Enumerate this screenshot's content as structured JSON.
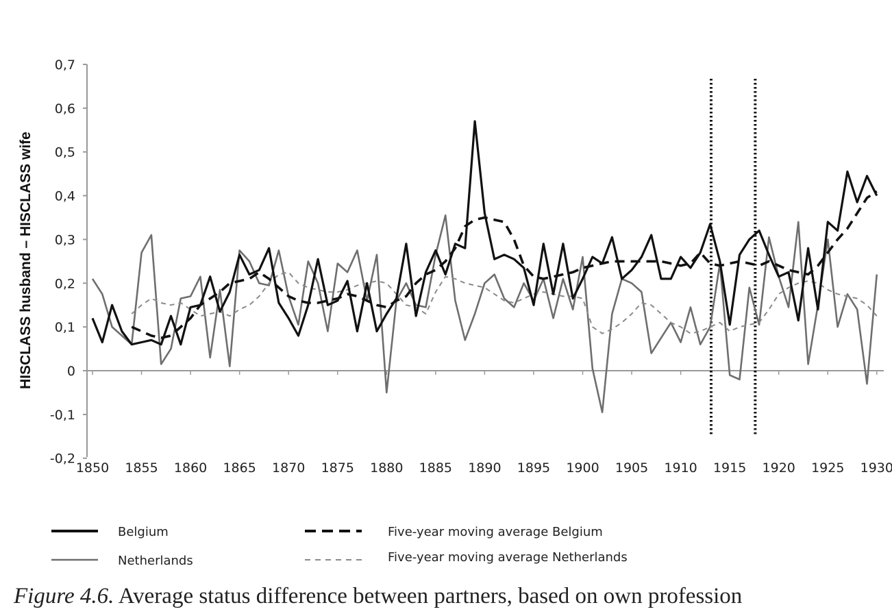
{
  "chart_data": {
    "type": "line",
    "title": "",
    "xlabel": "",
    "ylabel": "HISCLASS husband – HISCLASS wife",
    "xlim": [
      1850,
      1930
    ],
    "ylim": [
      -0.2,
      0.7
    ],
    "y_ticks": [
      "0,7",
      "0,6",
      "0,5",
      "0,4",
      "0,3",
      "0,2",
      "0,1",
      "0",
      "-0,1",
      "-0,2"
    ],
    "y_tick_values": [
      0.7,
      0.6,
      0.5,
      0.4,
      0.3,
      0.2,
      0.1,
      0,
      -0.1,
      -0.2
    ],
    "x_ticks": [
      "1850",
      "1855",
      "1860",
      "1865",
      "1870",
      "1875",
      "1880",
      "1885",
      "1890",
      "1895",
      "1900",
      "1905",
      "1910",
      "1915",
      "1920",
      "1925",
      "1930"
    ],
    "x_tick_values": [
      1850,
      1855,
      1860,
      1865,
      1870,
      1875,
      1880,
      1885,
      1890,
      1895,
      1900,
      1905,
      1910,
      1915,
      1920,
      1925,
      1930
    ],
    "grid": false,
    "legend_placement": "bottom",
    "vertical_markers": [
      1913.1,
      1917.6
    ],
    "x_start": 1850,
    "series": [
      {
        "name": "Belgium",
        "style": "solid-thick",
        "color": "#111111",
        "values": [
          0.12,
          0.065,
          0.15,
          0.09,
          0.06,
          0.065,
          0.07,
          0.06,
          0.125,
          0.06,
          0.145,
          0.15,
          0.215,
          0.135,
          0.18,
          0.265,
          0.22,
          0.23,
          0.28,
          0.155,
          0.12,
          0.08,
          0.15,
          0.255,
          0.15,
          0.16,
          0.205,
          0.09,
          0.2,
          0.09,
          0.13,
          0.165,
          0.29,
          0.125,
          0.225,
          0.275,
          0.22,
          0.29,
          0.28,
          0.57,
          0.36,
          0.255,
          0.265,
          0.255,
          0.235,
          0.15,
          0.29,
          0.175,
          0.29,
          0.165,
          0.21,
          0.26,
          0.245,
          0.305,
          0.21,
          0.23,
          0.26,
          0.31,
          0.21,
          0.21,
          0.26,
          0.235,
          0.27,
          0.335,
          0.25,
          0.105,
          0.265,
          0.3,
          0.32,
          0.265,
          0.215,
          0.225,
          0.115,
          0.28,
          0.14,
          0.34,
          0.32,
          0.455,
          0.385,
          0.445,
          0.4
        ]
      },
      {
        "name": "Netherlands",
        "style": "solid-thin",
        "color": "#6e6e6e",
        "values": [
          0.21,
          0.175,
          0.1,
          0.08,
          0.06,
          0.27,
          0.31,
          0.015,
          0.05,
          0.165,
          0.17,
          0.215,
          0.03,
          0.185,
          0.01,
          0.275,
          0.25,
          0.2,
          0.195,
          0.275,
          0.17,
          0.105,
          0.25,
          0.2,
          0.09,
          0.245,
          0.225,
          0.275,
          0.16,
          0.265,
          -0.05,
          0.16,
          0.2,
          0.15,
          0.145,
          0.265,
          0.355,
          0.16,
          0.07,
          0.13,
          0.2,
          0.22,
          0.165,
          0.145,
          0.2,
          0.16,
          0.21,
          0.12,
          0.21,
          0.14,
          0.26,
          0.005,
          -0.095,
          0.13,
          0.21,
          0.2,
          0.18,
          0.04,
          0.075,
          0.11,
          0.065,
          0.145,
          0.06,
          0.1,
          0.245,
          -0.01,
          -0.02,
          0.19,
          0.105,
          0.305,
          0.215,
          0.145,
          0.34,
          0.015,
          0.15,
          0.3,
          0.1,
          0.175,
          0.14,
          -0.03,
          0.22
        ]
      },
      {
        "name": "Five-year moving average Belgium",
        "style": "dashed-thick",
        "color": "#111111",
        "values": [
          null,
          null,
          null,
          null,
          0.1,
          0.09,
          0.08,
          0.075,
          0.08,
          0.1,
          0.12,
          0.15,
          0.165,
          0.18,
          0.2,
          0.205,
          0.21,
          0.225,
          0.21,
          0.19,
          0.17,
          0.16,
          0.155,
          0.155,
          0.16,
          0.165,
          0.175,
          0.17,
          0.16,
          0.15,
          0.145,
          0.16,
          0.17,
          0.2,
          0.22,
          0.23,
          0.25,
          0.28,
          0.33,
          0.345,
          0.35,
          0.345,
          0.34,
          0.3,
          0.24,
          0.215,
          0.21,
          0.215,
          0.22,
          0.225,
          0.235,
          0.24,
          0.245,
          0.25,
          0.25,
          0.25,
          0.25,
          0.25,
          0.25,
          0.245,
          0.24,
          0.245,
          0.27,
          0.245,
          0.24,
          0.245,
          0.25,
          0.245,
          0.24,
          0.25,
          0.24,
          0.23,
          0.225,
          0.22,
          0.24,
          0.27,
          0.3,
          0.325,
          0.36,
          0.395,
          0.41
        ]
      },
      {
        "name": "Five-year moving average Netherlands",
        "style": "dashed-thin",
        "color": "#8a8a8a",
        "values": [
          null,
          null,
          null,
          null,
          0.13,
          0.15,
          0.165,
          0.155,
          0.15,
          0.155,
          0.14,
          0.125,
          0.13,
          0.135,
          0.125,
          0.14,
          0.15,
          0.17,
          0.2,
          0.22,
          0.225,
          0.2,
          0.19,
          0.185,
          0.18,
          0.18,
          0.185,
          0.195,
          0.2,
          0.205,
          0.2,
          0.175,
          0.15,
          0.145,
          0.13,
          0.18,
          0.215,
          0.21,
          0.2,
          0.195,
          0.19,
          0.175,
          0.16,
          0.155,
          0.165,
          0.175,
          0.18,
          0.175,
          0.17,
          0.17,
          0.165,
          0.1,
          0.085,
          0.095,
          0.11,
          0.13,
          0.155,
          0.15,
          0.13,
          0.11,
          0.1,
          0.085,
          0.09,
          0.1,
          0.11,
          0.09,
          0.1,
          0.105,
          0.11,
          0.14,
          0.175,
          0.19,
          0.2,
          0.205,
          0.2,
          0.185,
          0.175,
          0.17,
          0.165,
          0.15,
          0.125
        ]
      }
    ]
  },
  "caption": {
    "label": "Figure 4.6.",
    "text": " Average status difference between partners, based on own profession"
  }
}
